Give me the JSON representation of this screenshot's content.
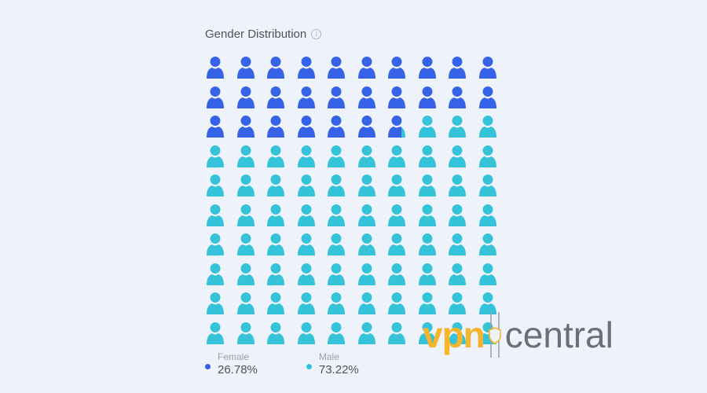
{
  "header": {
    "title": "Gender Distribution",
    "info_icon": "info-icon"
  },
  "colors": {
    "female": "#3562e6",
    "male": "#35c3d9"
  },
  "legend": [
    {
      "label": "Female",
      "value": "26.78%",
      "color": "#3562e6"
    },
    {
      "label": "Male",
      "value": "73.22%",
      "color": "#35c3d9"
    }
  ],
  "watermark": {
    "left": "vpn",
    "right": "central"
  },
  "chart_data": {
    "type": "pictogram",
    "title": "Gender Distribution",
    "grid": {
      "rows": 10,
      "cols": 10,
      "total_icons": 100
    },
    "categories": [
      "Female",
      "Male"
    ],
    "values": [
      26.78,
      73.22
    ],
    "unit": "%",
    "legend_position": "bottom"
  }
}
